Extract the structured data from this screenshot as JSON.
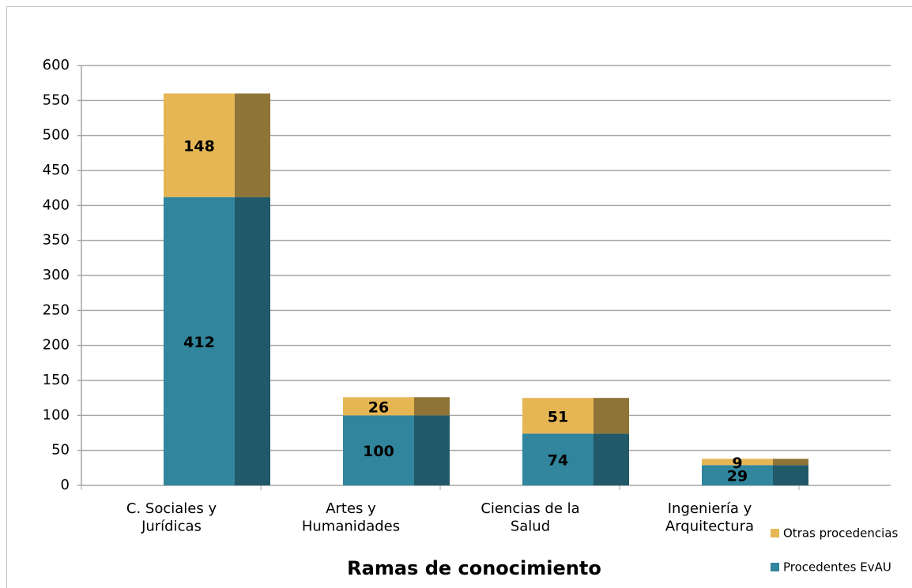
{
  "chart_data": {
    "type": "stacked_bar",
    "x_label": "Ramas de conocimiento",
    "categories": [
      "C. Sociales y\nJurídicas",
      "Artes y\nHumanidades",
      "Ciencias de la\nSalud",
      "Ingeniería y\nArquitectura"
    ],
    "series": [
      {
        "name": "Procedentes EvAU",
        "color": "#31859c",
        "side_color": "#215968",
        "values": [
          412,
          100,
          74,
          29
        ]
      },
      {
        "name": "Otras procedencias",
        "color": "#e6b655",
        "side_color": "#8f7437",
        "values": [
          148,
          26,
          51,
          9
        ]
      }
    ],
    "ylim": [
      0,
      600
    ],
    "yticks": [
      0,
      50,
      100,
      150,
      200,
      250,
      300,
      350,
      400,
      450,
      500,
      550,
      600
    ],
    "grid": true,
    "legend": "bottom-right"
  }
}
